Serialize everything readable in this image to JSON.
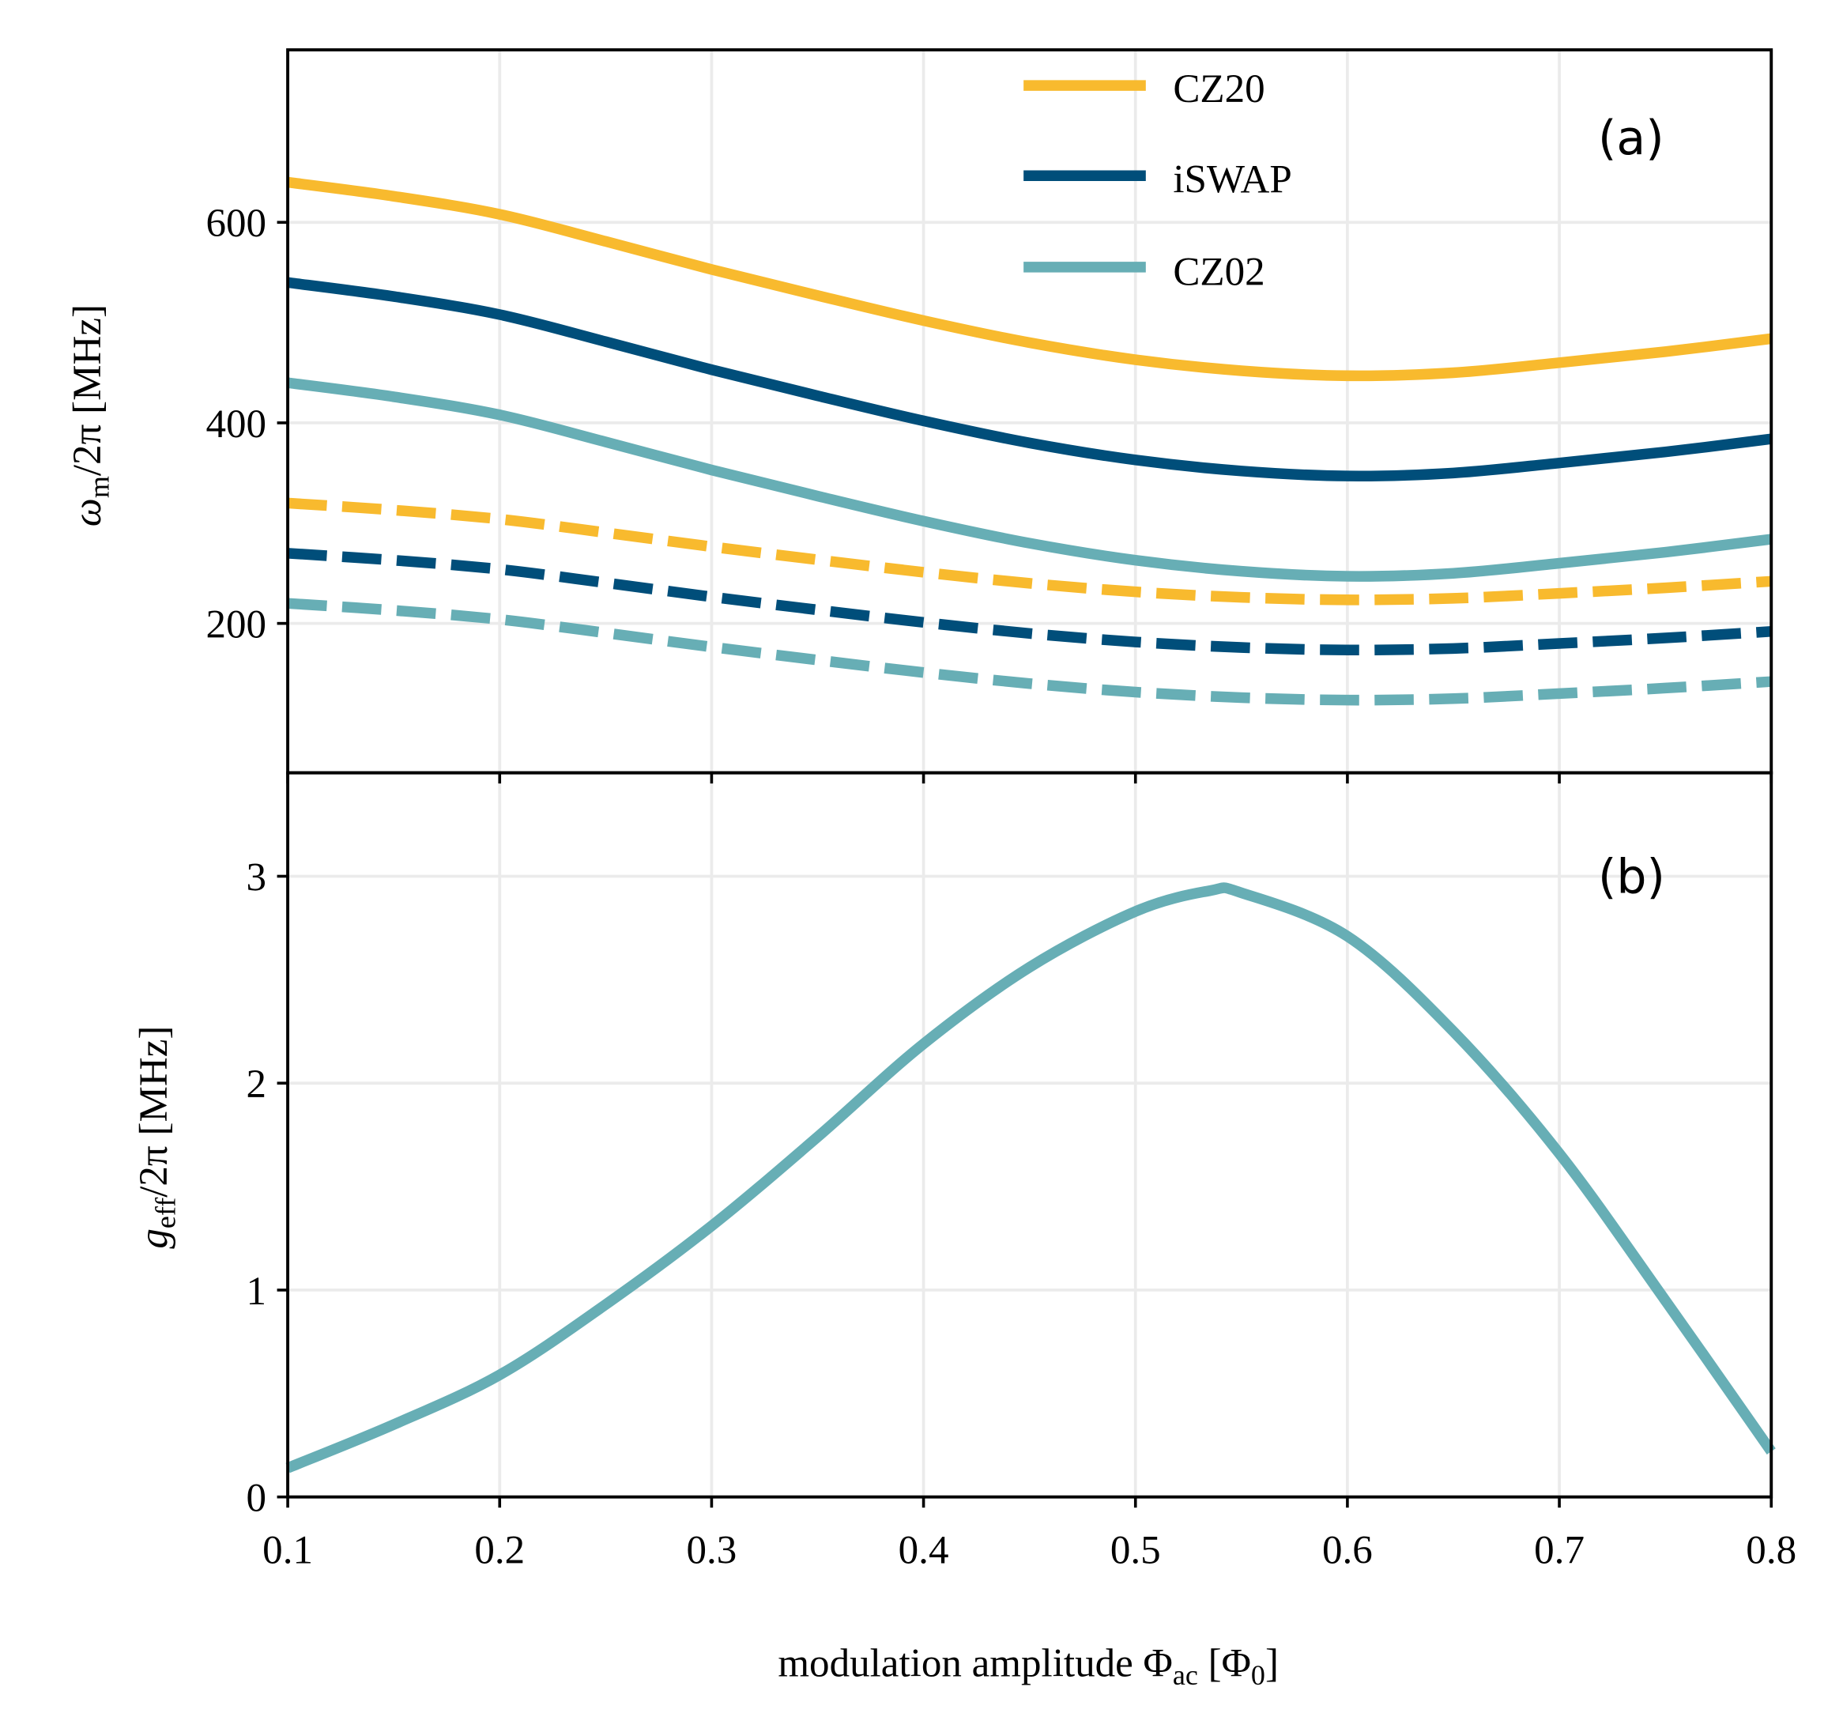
{
  "chart_data": [
    {
      "panel_label": "(a)",
      "type": "line",
      "x": [
        0.1,
        0.15,
        0.2,
        0.25,
        0.3,
        0.35,
        0.4,
        0.45,
        0.5,
        0.55,
        0.6,
        0.65,
        0.7,
        0.75,
        0.8
      ],
      "xlim": [
        0.1,
        0.8
      ],
      "ylim": [
        51,
        772
      ],
      "yticks": [
        "200",
        "400",
        "600"
      ],
      "ytick_values": [
        200,
        400,
        600
      ],
      "grid": true,
      "legend_position": "top-center",
      "ylabel": {
        "symbol": "ω",
        "subscript": "m",
        "rest": "/2π [MHz]"
      },
      "colors": {
        "CZ20": "#F8BA2E",
        "iSWAP": "#004E7A",
        "CZ02": "#67AEB5"
      },
      "series": [
        {
          "name": "CZ20",
          "style": "solid",
          "color": "#F8BA2E",
          "values": [
            640,
            626,
            608,
            581,
            553,
            527,
            502,
            480,
            463,
            452,
            447,
            450,
            460,
            471,
            484
          ]
        },
        {
          "name": "iSWAP",
          "style": "solid",
          "color": "#004E7A",
          "values": [
            540,
            526,
            508,
            481,
            453,
            427,
            402,
            380,
            363,
            352,
            347,
            350,
            360,
            371,
            384
          ]
        },
        {
          "name": "CZ02",
          "style": "solid",
          "color": "#67AEB5",
          "values": [
            440,
            426,
            408,
            381,
            353,
            327,
            302,
            280,
            263,
            252,
            247,
            250,
            260,
            271,
            284
          ]
        },
        {
          "style": "dashed",
          "color": "#F8BA2E",
          "values": [
            320,
            313,
            304,
            290.5,
            276.5,
            263.5,
            251,
            240,
            231.5,
            226,
            223.5,
            225,
            230,
            235.5,
            242
          ]
        },
        {
          "style": "dashed",
          "color": "#004E7A",
          "values": [
            270,
            263,
            254,
            240.5,
            226.5,
            213.5,
            201,
            190,
            181.5,
            176,
            173.5,
            175,
            180,
            185.5,
            192
          ]
        },
        {
          "style": "dashed",
          "color": "#67AEB5",
          "values": [
            220,
            213,
            204,
            190.5,
            176.5,
            163.5,
            151,
            140,
            131.5,
            126,
            123.5,
            125,
            130,
            135.5,
            142
          ]
        }
      ]
    },
    {
      "panel_label": "(b)",
      "type": "line",
      "x": [
        0.1,
        0.15,
        0.2,
        0.25,
        0.3,
        0.35,
        0.4,
        0.45,
        0.5,
        0.535,
        0.55,
        0.6,
        0.65,
        0.7,
        0.75,
        0.8
      ],
      "xlim": [
        0.1,
        0.8
      ],
      "ylim": [
        0,
        3.5
      ],
      "yticks": [
        "0",
        "1",
        "2",
        "3"
      ],
      "ytick_values": [
        0,
        1,
        2,
        3
      ],
      "xticks": [
        "0.1",
        "0.2",
        "0.3",
        "0.4",
        "0.5",
        "0.6",
        "0.7",
        "0.8"
      ],
      "xtick_values": [
        0.1,
        0.2,
        0.3,
        0.4,
        0.5,
        0.6,
        0.7,
        0.8
      ],
      "grid": true,
      "ylabel": {
        "symbol": "g",
        "subscript": "eff",
        "rest": "/2π [MHz]"
      },
      "xlabel": {
        "text": "modulation amplitude Φ",
        "subscript": "ac",
        "bracket_open": " [Φ",
        "bracket_sub": "0",
        "bracket_close": "]"
      },
      "series": [
        {
          "style": "solid",
          "color": "#67AEB5",
          "values": [
            0.14,
            0.35,
            0.59,
            0.93,
            1.31,
            1.74,
            2.19,
            2.56,
            2.83,
            2.93,
            2.92,
            2.71,
            2.25,
            1.66,
            0.95,
            0.22
          ]
        }
      ]
    }
  ]
}
